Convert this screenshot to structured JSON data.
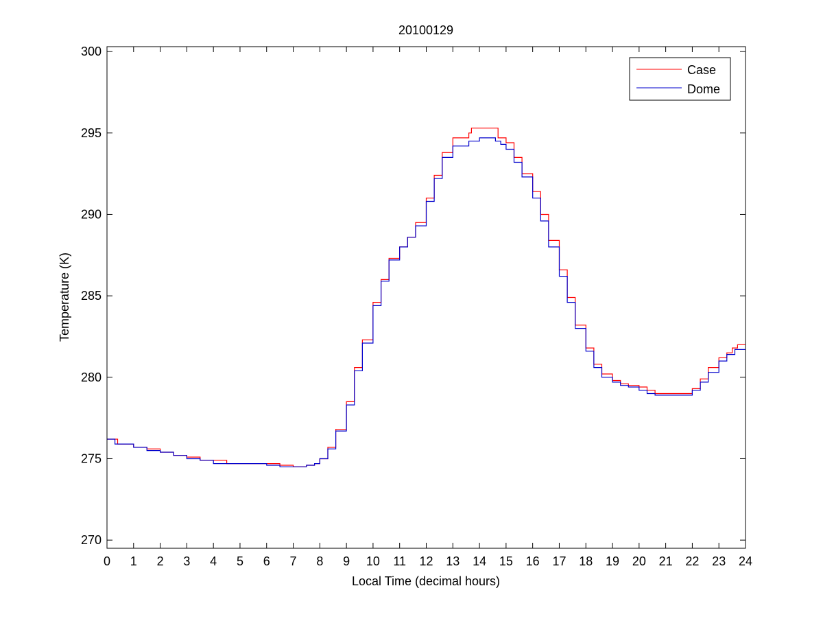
{
  "chart_data": {
    "type": "line",
    "title": "20100129",
    "xlabel": "Local Time (decimal hours)",
    "ylabel": "Temperature (K)",
    "xlim": [
      0,
      24
    ],
    "ylim": [
      269.5,
      300.3
    ],
    "xticks": [
      "0",
      "1",
      "2",
      "3",
      "4",
      "5",
      "6",
      "7",
      "8",
      "9",
      "10",
      "11",
      "12",
      "13",
      "14",
      "15",
      "16",
      "17",
      "18",
      "19",
      "20",
      "21",
      "22",
      "23",
      "24"
    ],
    "yticks": [
      "270",
      "275",
      "280",
      "285",
      "290",
      "295",
      "300"
    ],
    "grid": false,
    "legend_position": "top-right",
    "series": [
      {
        "name": "Case",
        "color": "#ff0000",
        "x": [
          0,
          0.4,
          1.0,
          1.5,
          2.0,
          2.5,
          3.0,
          3.5,
          4.0,
          4.5,
          5.0,
          5.5,
          6.0,
          6.5,
          7.0,
          7.5,
          7.8,
          8.0,
          8.3,
          8.6,
          9.0,
          9.3,
          9.6,
          10.0,
          10.3,
          10.6,
          11.0,
          11.3,
          11.6,
          12.0,
          12.3,
          12.6,
          13.0,
          13.3,
          13.6,
          13.7,
          14.0,
          14.3,
          14.6,
          14.7,
          15.0,
          15.3,
          15.6,
          16.0,
          16.3,
          16.6,
          17.0,
          17.3,
          17.6,
          18.0,
          18.3,
          18.6,
          19.0,
          19.3,
          19.6,
          20.0,
          20.3,
          20.6,
          21.0,
          21.5,
          21.8,
          22.0,
          22.3,
          22.6,
          23.0,
          23.3,
          23.5,
          23.7,
          24.0
        ],
        "y": [
          276.2,
          275.9,
          275.7,
          275.6,
          275.4,
          275.2,
          275.1,
          274.9,
          274.9,
          274.7,
          274.7,
          274.7,
          274.7,
          274.6,
          274.5,
          274.6,
          274.7,
          275.0,
          275.7,
          276.8,
          278.5,
          280.6,
          282.3,
          284.6,
          286.0,
          287.3,
          288.0,
          288.6,
          289.5,
          291.0,
          292.4,
          293.8,
          294.7,
          294.7,
          295.0,
          295.3,
          295.3,
          295.3,
          295.3,
          294.7,
          294.4,
          293.5,
          292.5,
          291.4,
          290.0,
          288.4,
          286.6,
          284.9,
          283.2,
          281.8,
          280.8,
          280.2,
          279.8,
          279.6,
          279.5,
          279.4,
          279.2,
          279.0,
          279.0,
          279.0,
          279.0,
          279.3,
          279.9,
          280.6,
          281.2,
          281.5,
          281.8,
          282.0,
          282.0
        ]
      },
      {
        "name": "Dome",
        "color": "#0000cc",
        "x": [
          0,
          0.3,
          1.0,
          1.5,
          2.0,
          2.5,
          3.0,
          3.5,
          4.0,
          4.5,
          5.0,
          5.5,
          6.0,
          6.5,
          7.0,
          7.5,
          7.8,
          8.0,
          8.3,
          8.6,
          9.0,
          9.3,
          9.6,
          10.0,
          10.3,
          10.6,
          11.0,
          11.3,
          11.6,
          12.0,
          12.3,
          12.6,
          13.0,
          13.3,
          13.6,
          14.0,
          14.3,
          14.6,
          14.8,
          15.0,
          15.3,
          15.6,
          16.0,
          16.3,
          16.6,
          17.0,
          17.3,
          17.6,
          18.0,
          18.3,
          18.6,
          19.0,
          19.3,
          19.6,
          20.0,
          20.3,
          20.6,
          21.0,
          21.5,
          21.8,
          22.0,
          22.3,
          22.6,
          23.0,
          23.3,
          23.6,
          24.0
        ],
        "y": [
          276.2,
          275.9,
          275.7,
          275.5,
          275.4,
          275.2,
          275.0,
          274.9,
          274.7,
          274.7,
          274.7,
          274.7,
          274.6,
          274.5,
          274.5,
          274.6,
          274.7,
          275.0,
          275.6,
          276.7,
          278.3,
          280.4,
          282.1,
          284.4,
          285.9,
          287.2,
          288.0,
          288.6,
          289.3,
          290.8,
          292.2,
          293.5,
          294.2,
          294.2,
          294.5,
          294.7,
          294.7,
          294.5,
          294.3,
          294.0,
          293.2,
          292.3,
          291.0,
          289.6,
          288.0,
          286.2,
          284.6,
          283.0,
          281.6,
          280.6,
          280.0,
          279.7,
          279.5,
          279.4,
          279.2,
          279.0,
          278.9,
          278.9,
          278.9,
          278.9,
          279.2,
          279.7,
          280.3,
          281.0,
          281.4,
          281.7,
          281.7
        ]
      }
    ]
  }
}
